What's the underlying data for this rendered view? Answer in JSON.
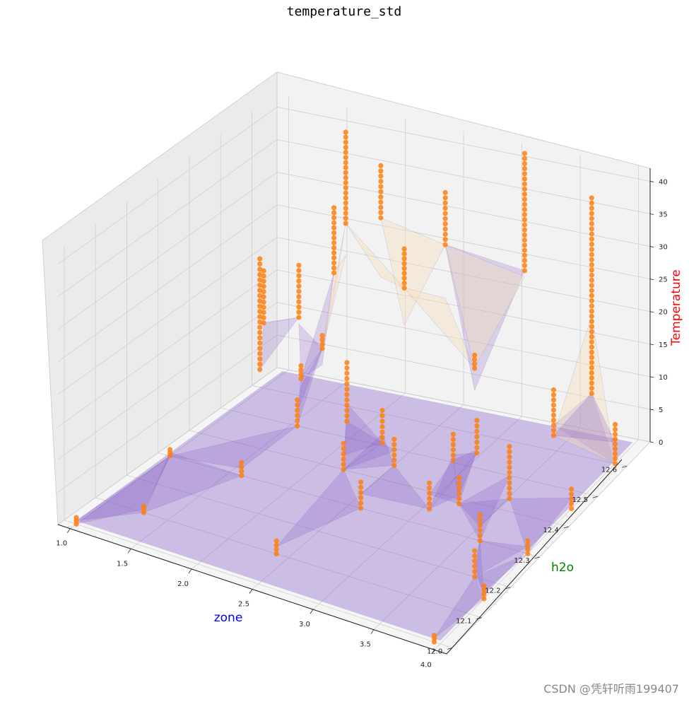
{
  "chart_data": {
    "type": "scatter3d",
    "title": "temperature_std",
    "xlabel": "zone",
    "ylabel": "h2o",
    "zlabel": "Temperature",
    "xlim": [
      0.9,
      4.1
    ],
    "ylim": [
      11.98,
      12.68
    ],
    "zlim": [
      0,
      42
    ],
    "x_ticks": [
      "1.0",
      "1.5",
      "2.0",
      "2.5",
      "3.0",
      "3.5",
      "4.0"
    ],
    "y_ticks": [
      "12.0",
      "12.1",
      "12.2",
      "12.3",
      "12.4",
      "12.5",
      "12.6"
    ],
    "z_ticks": [
      "0",
      "5",
      "10",
      "15",
      "20",
      "25",
      "30",
      "35",
      "40"
    ],
    "colors": {
      "xlabel": "#0000ff",
      "ylabel": "#008000",
      "zlabel": "#ff0000",
      "points": "#ff7f0e",
      "surface_low": "#7e57c2",
      "surface_high": "#f5deb3"
    },
    "columns": [
      {
        "x": 1.0,
        "y": 12.0,
        "zmin": 0,
        "zmax": 1
      },
      {
        "x": 1.0,
        "y": 12.3,
        "zmin": 0,
        "zmax": 1
      },
      {
        "x": 1.0,
        "y": 12.6,
        "zmin": 10,
        "zmax": 18
      },
      {
        "x": 1.1,
        "y": 12.55,
        "zmin": 5,
        "zmax": 22
      },
      {
        "x": 1.3,
        "y": 12.6,
        "zmin": 12,
        "zmax": 20
      },
      {
        "x": 1.5,
        "y": 12.6,
        "zmin": 8,
        "zmax": 10
      },
      {
        "x": 1.6,
        "y": 12.6,
        "zmin": 20,
        "zmax": 30
      },
      {
        "x": 1.7,
        "y": 12.6,
        "zmin": 28,
        "zmax": 42
      },
      {
        "x": 1.55,
        "y": 12.5,
        "zmin": 0,
        "zmax": 4
      },
      {
        "x": 1.45,
        "y": 12.55,
        "zmin": 5,
        "zmax": 7
      },
      {
        "x": 1.6,
        "y": 12.3,
        "zmin": 0,
        "zmax": 2
      },
      {
        "x": 1.3,
        "y": 12.1,
        "zmin": 0,
        "zmax": 1
      },
      {
        "x": 2.0,
        "y": 12.6,
        "zmin": 30,
        "zmax": 38
      },
      {
        "x": 2.2,
        "y": 12.6,
        "zmin": 20,
        "zmax": 26
      },
      {
        "x": 2.1,
        "y": 12.45,
        "zmin": 5,
        "zmax": 14
      },
      {
        "x": 2.2,
        "y": 12.4,
        "zmin": 0,
        "zmax": 4
      },
      {
        "x": 2.4,
        "y": 12.45,
        "zmin": 3,
        "zmax": 8
      },
      {
        "x": 2.5,
        "y": 12.45,
        "zmin": 0,
        "zmax": 4
      },
      {
        "x": 2.55,
        "y": 12.6,
        "zmin": 28,
        "zmax": 36
      },
      {
        "x": 2.6,
        "y": 12.3,
        "zmin": 0,
        "zmax": 4
      },
      {
        "x": 2.4,
        "y": 12.1,
        "zmin": 0,
        "zmax": 2
      },
      {
        "x": 2.8,
        "y": 12.6,
        "zmin": 10,
        "zmax": 12
      },
      {
        "x": 3.1,
        "y": 12.65,
        "zmin": 24,
        "zmax": 42
      },
      {
        "x": 3.0,
        "y": 12.45,
        "zmin": 3,
        "zmax": 7
      },
      {
        "x": 3.05,
        "y": 12.35,
        "zmin": 0,
        "zmax": 4
      },
      {
        "x": 3.2,
        "y": 12.45,
        "zmin": 5,
        "zmax": 10
      },
      {
        "x": 3.3,
        "y": 12.35,
        "zmin": 2,
        "zmax": 6
      },
      {
        "x": 3.6,
        "y": 12.55,
        "zmin": 5,
        "zmax": 12
      },
      {
        "x": 3.6,
        "y": 12.4,
        "zmin": 2,
        "zmax": 10
      },
      {
        "x": 3.8,
        "y": 12.6,
        "zmin": 10,
        "zmax": 40
      },
      {
        "x": 3.6,
        "y": 12.3,
        "zmin": 0,
        "zmax": 4
      },
      {
        "x": 3.8,
        "y": 12.2,
        "zmin": 0,
        "zmax": 4
      },
      {
        "x": 4.0,
        "y": 12.6,
        "zmin": 0,
        "zmax": 6
      },
      {
        "x": 4.0,
        "y": 12.45,
        "zmin": 0,
        "zmax": 3
      },
      {
        "x": 4.0,
        "y": 12.3,
        "zmin": 0,
        "zmax": 2
      },
      {
        "x": 4.0,
        "y": 12.15,
        "zmin": 0,
        "zmax": 2
      },
      {
        "x": 3.95,
        "y": 12.0,
        "zmin": 0,
        "zmax": 1
      }
    ]
  },
  "watermark": "CSDN @凭轩听雨199407"
}
